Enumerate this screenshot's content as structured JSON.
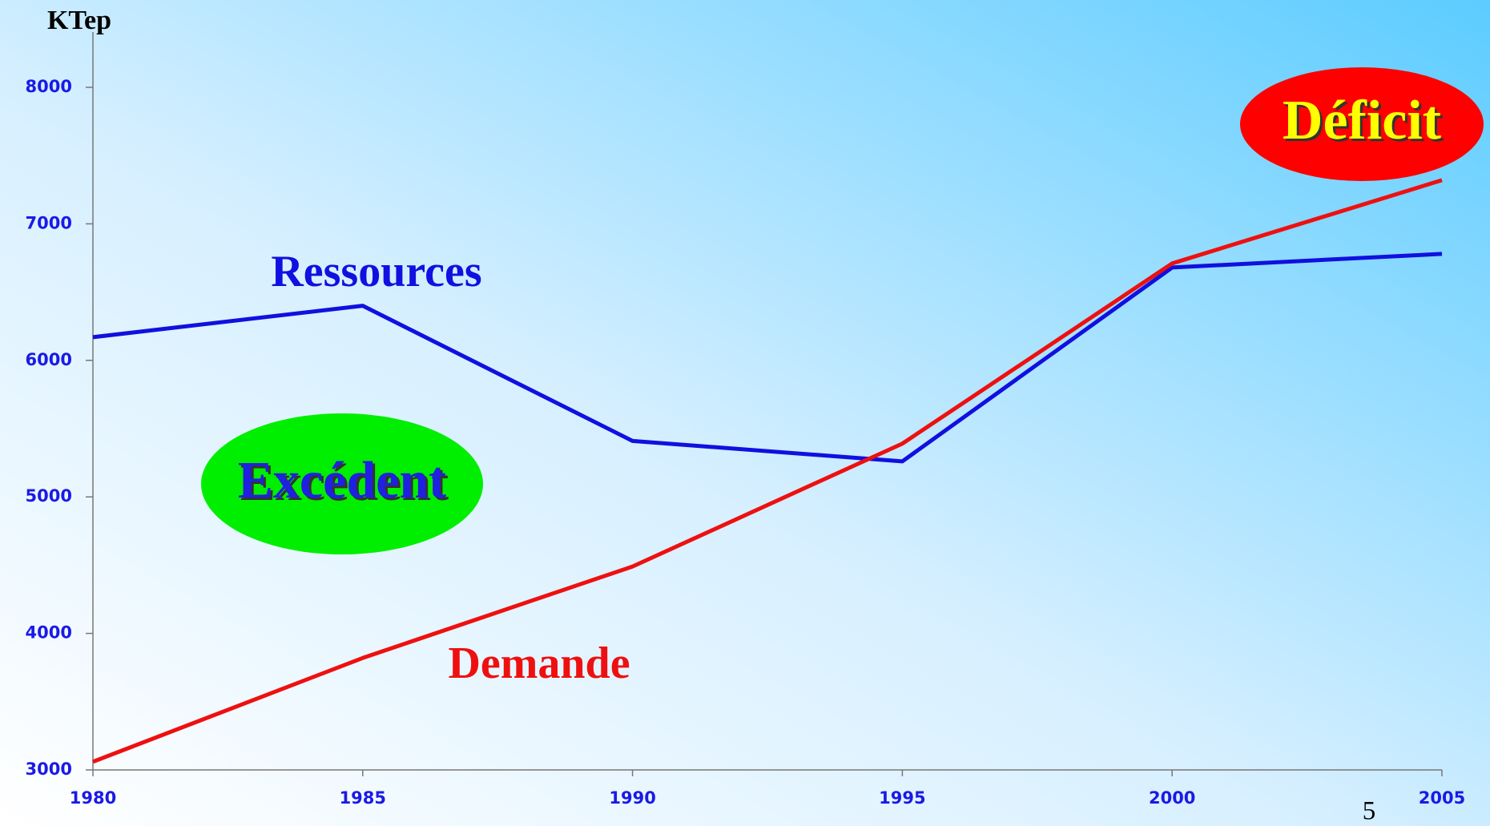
{
  "chart_data": {
    "type": "line",
    "y_label": "KTep",
    "x": [
      1980,
      1985,
      1990,
      1995,
      2000,
      2005
    ],
    "xlim": [
      1980,
      2005
    ],
    "xticks": [
      1980,
      1985,
      1990,
      1995,
      2000,
      2005
    ],
    "ylim": [
      3000,
      8000
    ],
    "yticks": [
      3000,
      4000,
      5000,
      6000,
      7000,
      8000
    ],
    "series": [
      {
        "name": "Ressources",
        "color": "#1010e0",
        "values": [
          6170,
          6400,
          5410,
          5260,
          6680,
          6780
        ]
      },
      {
        "name": "Demande",
        "color": "#ee1010",
        "values": [
          3060,
          3820,
          4490,
          5390,
          6710,
          7320
        ]
      }
    ],
    "annotations": [
      {
        "text": "Excédent",
        "fill": "#00ee00",
        "text_color": "#2020e0"
      },
      {
        "text": "Déficit",
        "fill": "#ff0000",
        "text_color": "#ffff00"
      }
    ]
  },
  "slide_number": "5"
}
